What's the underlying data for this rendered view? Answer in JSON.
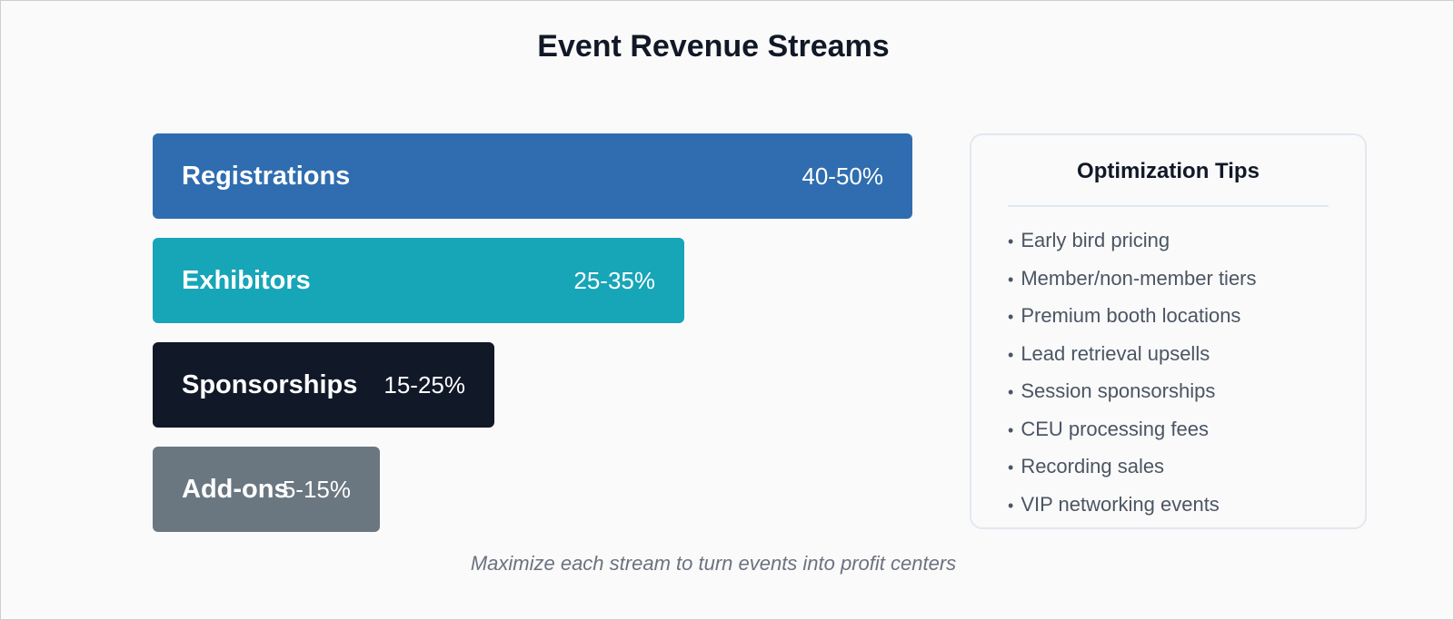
{
  "title": "Event Revenue Streams",
  "streams": [
    {
      "label": "Registrations",
      "range": "40-50%",
      "color": "#2f6db0"
    },
    {
      "label": "Exhibitors",
      "range": "25-35%",
      "color": "#17a5b8"
    },
    {
      "label": "Sponsorships",
      "range": "15-25%",
      "color": "#111827"
    },
    {
      "label": "Add-ons",
      "range": "5-15%",
      "color": "#6b7780"
    }
  ],
  "tips": {
    "title": "Optimization Tips",
    "items": [
      "Early bird pricing",
      "Member/non-member tiers",
      "Premium booth locations",
      "Lead retrieval upsells",
      "Session sponsorships",
      "CEU processing fees",
      "Recording sales",
      "VIP networking events"
    ]
  },
  "footer": "Maximize each stream to turn events into profit centers"
}
